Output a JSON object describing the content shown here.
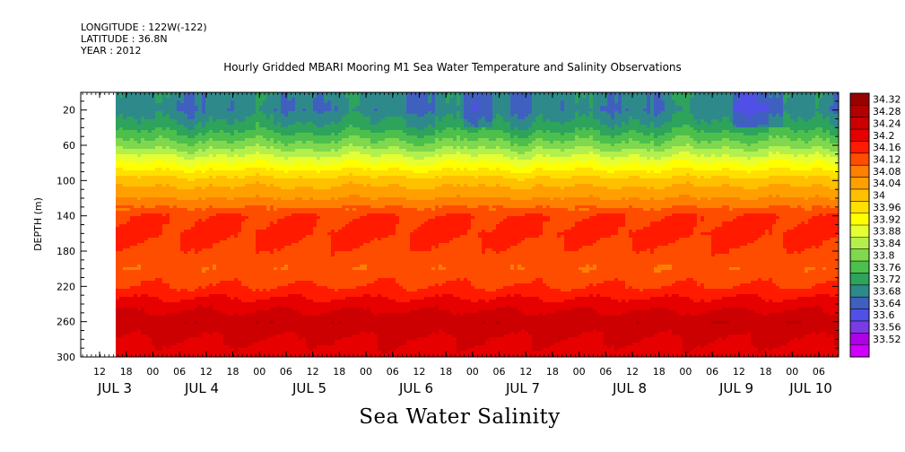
{
  "header": {
    "longitude": "LONGITUDE : 122W(-122)",
    "latitude": "LATITUDE : 36.8N",
    "year": "YEAR : 2012"
  },
  "footer_title": "Sea Water Salinity",
  "chart_data": {
    "type": "heatmap",
    "title": "Hourly Gridded MBARI Mooring M1 Sea Water Temperature and Salinity Observations",
    "ylabel": "DEPTH (m)",
    "xlabel": "",
    "y_axis": {
      "range": [
        300,
        0
      ],
      "ticks": [
        20,
        60,
        100,
        140,
        180,
        220,
        260,
        300
      ],
      "inverted": true
    },
    "x_axis": {
      "hour_ticks": [
        "12",
        "18",
        "00",
        "06",
        "12",
        "18",
        "00",
        "06",
        "12",
        "18",
        "00",
        "06",
        "12",
        "18",
        "00",
        "06",
        "12",
        "18",
        "00",
        "06",
        "12",
        "18",
        "00",
        "06",
        "12",
        "18",
        "00",
        "06"
      ],
      "day_labels": [
        "JUL  3",
        "JUL  4",
        "JUL  5",
        "JUL  6",
        "JUL  7",
        "JUL  8",
        "JUL  9",
        "JUL 10"
      ]
    },
    "colorbar": {
      "levels": [
        34.32,
        34.28,
        34.24,
        34.2,
        34.16,
        34.12,
        34.08,
        34.04,
        34,
        33.96,
        33.92,
        33.88,
        33.84,
        33.8,
        33.76,
        33.72,
        33.68,
        33.64,
        33.6,
        33.56,
        33.52
      ],
      "colors": [
        "#990000",
        "#b30000",
        "#cc0000",
        "#e60000",
        "#ff1a00",
        "#ff4d00",
        "#ff8000",
        "#ffa000",
        "#ffc000",
        "#ffe000",
        "#ffff00",
        "#e6ff33",
        "#b3f04d",
        "#7fd84d",
        "#4dbf4d",
        "#2ea35c",
        "#2e8a8a",
        "#4060c0",
        "#5050e6",
        "#7a3ae6",
        "#b000e6",
        "#d000ff"
      ],
      "color_labels_note": "colors from top (>34.32) to bottom (<33.52)"
    },
    "depth_profile": {
      "depths": [
        5,
        20,
        40,
        60,
        80,
        100,
        120,
        140,
        160,
        180,
        200,
        220,
        240,
        260,
        280,
        300
      ],
      "salinity": [
        33.7,
        33.69,
        33.74,
        33.82,
        33.92,
        34.02,
        34.08,
        34.16,
        34.17,
        34.15,
        34.13,
        34.16,
        34.22,
        34.27,
        34.24,
        34.22
      ]
    },
    "data_start_hour": 6,
    "grid": false,
    "legend": "colorbar-right"
  }
}
